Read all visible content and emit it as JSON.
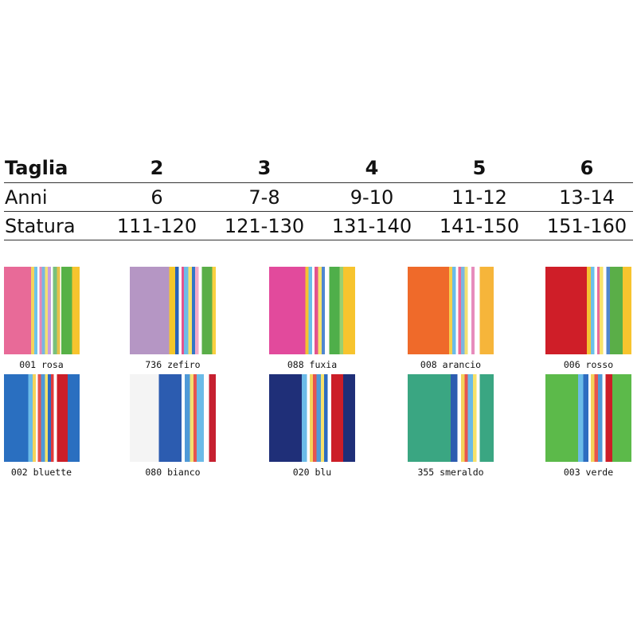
{
  "table": {
    "header": [
      "Taglia",
      "2",
      "3",
      "4",
      "5",
      "6"
    ],
    "rows": [
      [
        "Anni",
        "6",
        "7-8",
        "9-10",
        "11-12",
        "13-14"
      ],
      [
        "Statura",
        "111-120",
        "121-130",
        "131-140",
        "141-150",
        "151-160"
      ]
    ]
  },
  "swatches": [
    "001 rosa",
    "736 zefiro",
    "088 fuxia",
    "008 arancio",
    "006 rosso",
    "002 bluette",
    "080 bianco",
    "020 blu",
    "355 smeraldo",
    "003 verde"
  ]
}
